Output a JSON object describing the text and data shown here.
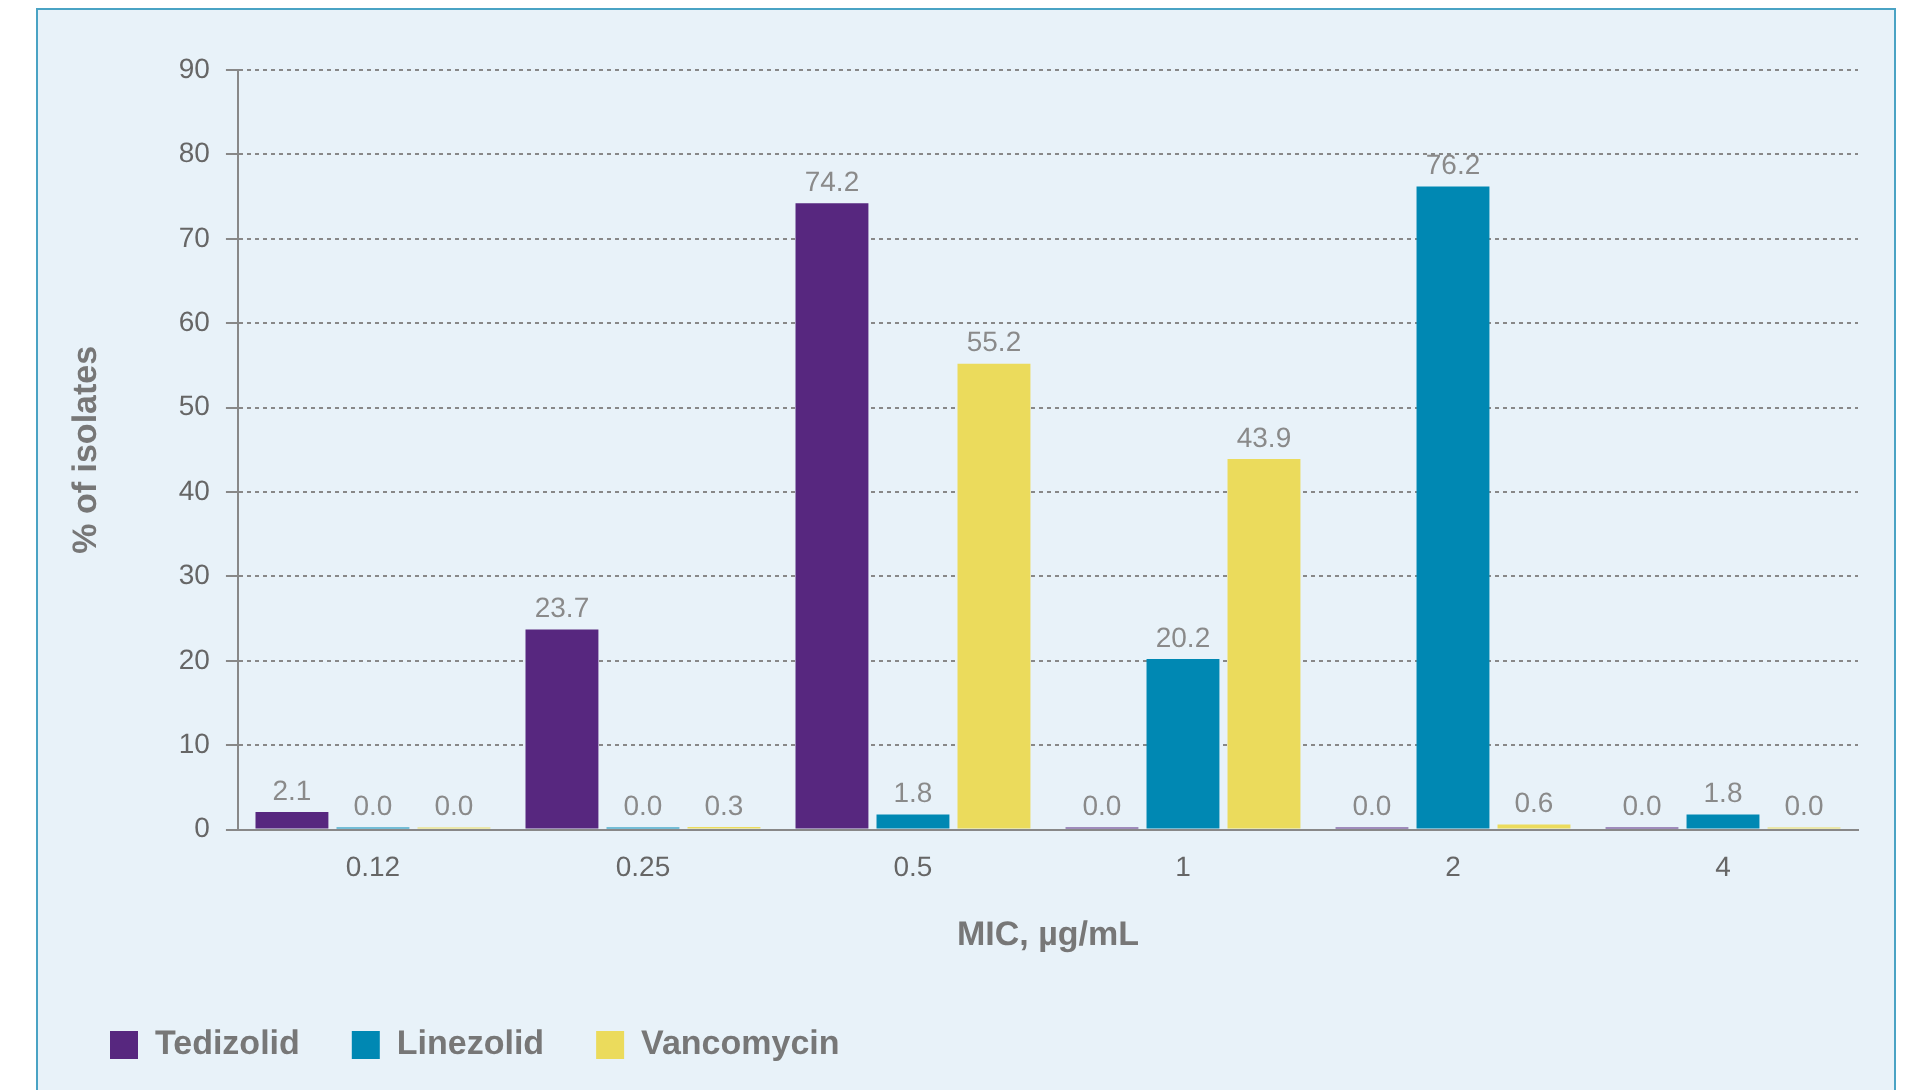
{
  "chart_data": {
    "type": "bar",
    "xlabel": "MIC, µg/mL",
    "ylabel": "% of isolates",
    "categories": [
      "0.12",
      "0.25",
      "0.5",
      "1",
      "2",
      "4"
    ],
    "series": [
      {
        "name": "Tedizolid",
        "color": "#57277f",
        "values": [
          2.1,
          23.7,
          74.2,
          0.0,
          0.0,
          0.0
        ],
        "value_labels": [
          "2.1",
          "23.7",
          "74.2",
          "0.0",
          "0.0",
          "0.0"
        ]
      },
      {
        "name": "Linezolid",
        "color": "#0088b3",
        "values": [
          0.0,
          0.0,
          1.8,
          20.2,
          76.2,
          1.8
        ],
        "value_labels": [
          "0.0",
          "0.0",
          "1.8",
          "20.2",
          "76.2",
          "1.8"
        ]
      },
      {
        "name": "Vancomycin",
        "color": "#ebdb5c",
        "values": [
          0.0,
          0.3,
          55.2,
          43.9,
          0.6,
          0.0
        ],
        "value_labels": [
          "0.0",
          "0.3",
          "55.2",
          "43.9",
          "0.6",
          "0.0"
        ]
      }
    ],
    "ylim": [
      0,
      90
    ],
    "yticks": [
      0,
      10,
      20,
      30,
      40,
      50,
      60,
      70,
      80,
      90
    ],
    "grid": "y",
    "legend": "bottom left"
  }
}
